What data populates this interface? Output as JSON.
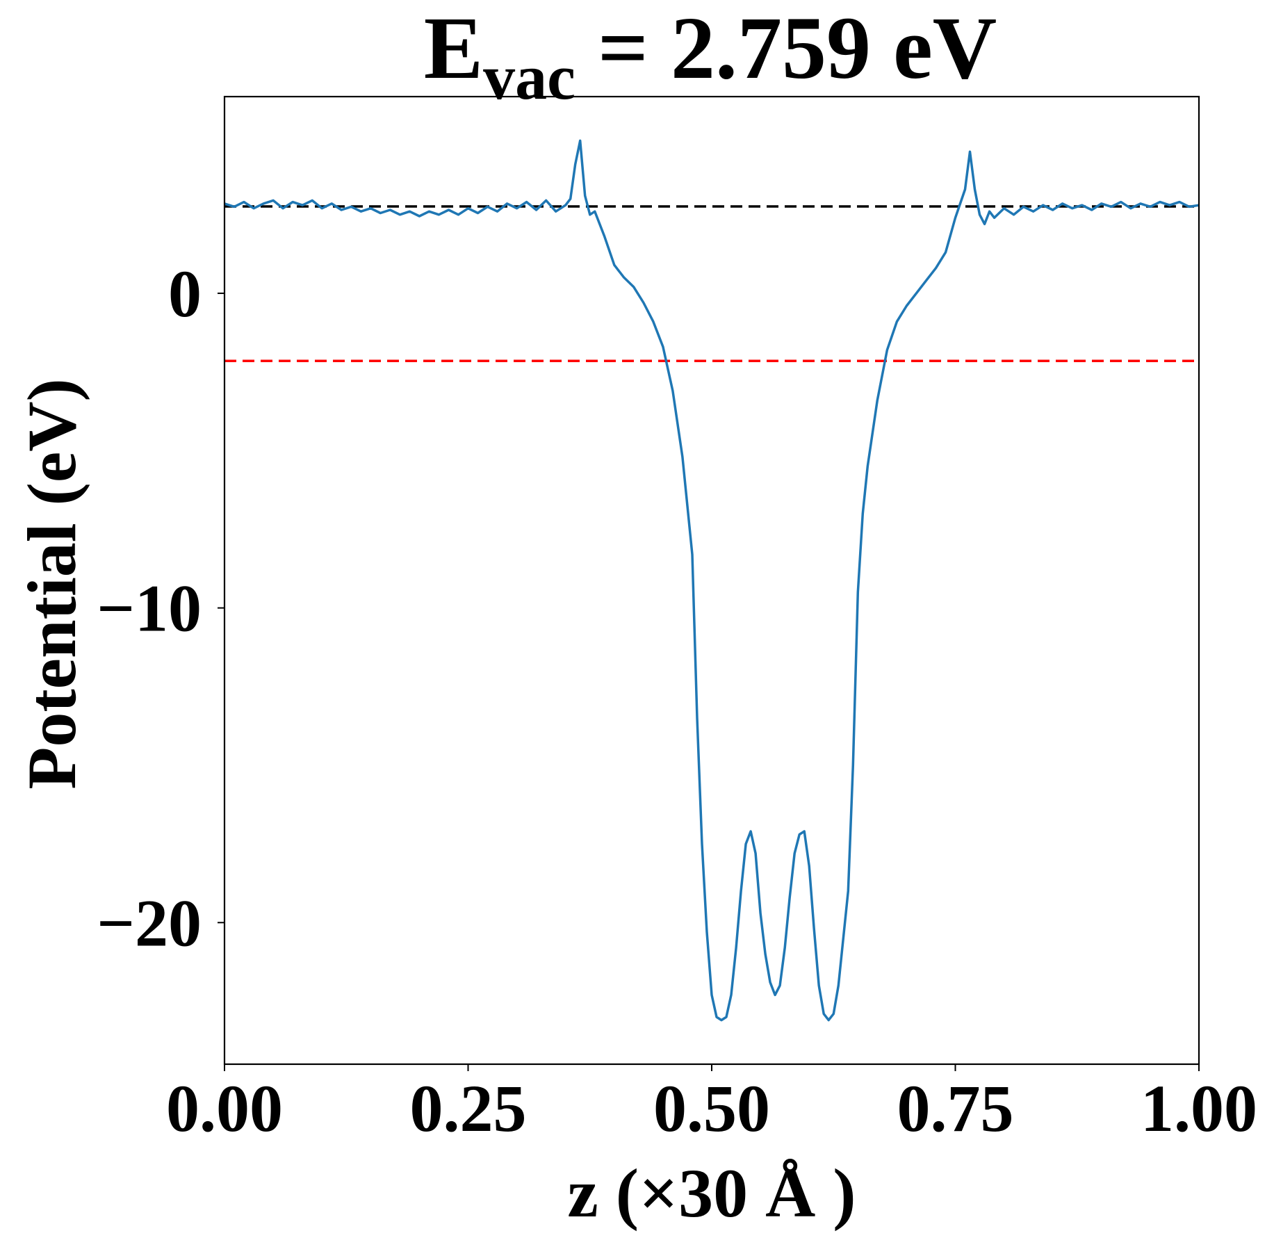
{
  "chart_data": {
    "type": "line",
    "title": {
      "main": "E",
      "sub": "vac",
      "rest": " = 2.759 eV"
    },
    "x_label": "z (×30 Å )",
    "y_label": "Potential (eV)",
    "xlim": [
      0,
      1
    ],
    "ylim": [
      -24.5,
      6.25
    ],
    "xticks": [
      {
        "value": 0,
        "label": "0.00"
      },
      {
        "value": 0.25,
        "label": "0.25"
      },
      {
        "value": 0.5,
        "label": "0.50"
      },
      {
        "value": 0.75,
        "label": "0.75"
      },
      {
        "value": 1,
        "label": "1.00"
      }
    ],
    "yticks": [
      0,
      {
        "value": -10,
        "label": "−10"
      },
      {
        "value": -20,
        "label": "−20"
      }
    ],
    "reference_lines": [
      {
        "value": 2.759,
        "color": "#000000"
      },
      {
        "value": -2.15,
        "color": "#ff0000"
      }
    ],
    "series": [
      {
        "color": "#1f77b4",
        "x": [
          0,
          0.01,
          0.02,
          0.03,
          0.04,
          0.05,
          0.06,
          0.07,
          0.08,
          0.09,
          0.1,
          0.11,
          0.12,
          0.13,
          0.14,
          0.15,
          0.16,
          0.17,
          0.18,
          0.19,
          0.2,
          0.21,
          0.22,
          0.23,
          0.24,
          0.25,
          0.26,
          0.27,
          0.28,
          0.29,
          0.3,
          0.31,
          0.32,
          0.33,
          0.34,
          0.35,
          0.355,
          0.36,
          0.365,
          0.37,
          0.375,
          0.38,
          0.39,
          0.4,
          0.41,
          0.42,
          0.43,
          0.44,
          0.45,
          0.46,
          0.47,
          0.48,
          0.485,
          0.49,
          0.495,
          0.5,
          0.505,
          0.51,
          0.515,
          0.52,
          0.525,
          0.53,
          0.535,
          0.54,
          0.545,
          0.55,
          0.555,
          0.56,
          0.565,
          0.57,
          0.575,
          0.58,
          0.585,
          0.59,
          0.595,
          0.6,
          0.605,
          0.61,
          0.615,
          0.62,
          0.625,
          0.63,
          0.635,
          0.64,
          0.645,
          0.65,
          0.655,
          0.66,
          0.67,
          0.68,
          0.69,
          0.7,
          0.71,
          0.72,
          0.73,
          0.74,
          0.75,
          0.76,
          0.765,
          0.77,
          0.775,
          0.78,
          0.785,
          0.79,
          0.8,
          0.81,
          0.82,
          0.83,
          0.84,
          0.85,
          0.86,
          0.87,
          0.88,
          0.89,
          0.9,
          0.91,
          0.92,
          0.93,
          0.94,
          0.95,
          0.96,
          0.97,
          0.98,
          0.99,
          1
        ],
        "values": [
          2.85,
          2.75,
          2.9,
          2.7,
          2.85,
          2.95,
          2.7,
          2.9,
          2.8,
          2.95,
          2.7,
          2.85,
          2.65,
          2.75,
          2.6,
          2.7,
          2.55,
          2.65,
          2.5,
          2.6,
          2.45,
          2.6,
          2.5,
          2.65,
          2.5,
          2.7,
          2.55,
          2.75,
          2.6,
          2.85,
          2.7,
          2.9,
          2.65,
          2.95,
          2.6,
          2.8,
          3.0,
          4.1,
          4.85,
          3.1,
          2.5,
          2.6,
          1.8,
          0.9,
          0.5,
          0.2,
          -0.3,
          -0.9,
          -1.7,
          -3.1,
          -5.2,
          -8.3,
          -13.5,
          -17.5,
          -20.3,
          -22.3,
          -23.0,
          -23.1,
          -23.0,
          -22.3,
          -20.8,
          -19.0,
          -17.5,
          -17.1,
          -17.8,
          -19.7,
          -21.0,
          -21.9,
          -22.3,
          -22.0,
          -20.8,
          -19.2,
          -17.8,
          -17.2,
          -17.1,
          -18.2,
          -20.2,
          -22.0,
          -22.9,
          -23.1,
          -22.9,
          -22.0,
          -20.5,
          -19.0,
          -15.0,
          -9.5,
          -7.0,
          -5.5,
          -3.4,
          -1.8,
          -0.9,
          -0.4,
          0,
          0.4,
          0.8,
          1.3,
          2.4,
          3.3,
          4.5,
          3.3,
          2.5,
          2.2,
          2.6,
          2.4,
          2.7,
          2.5,
          2.75,
          2.6,
          2.8,
          2.65,
          2.85,
          2.7,
          2.8,
          2.65,
          2.85,
          2.75,
          2.9,
          2.7,
          2.85,
          2.75,
          2.9,
          2.8,
          2.9,
          2.75,
          2.8
        ]
      }
    ]
  }
}
